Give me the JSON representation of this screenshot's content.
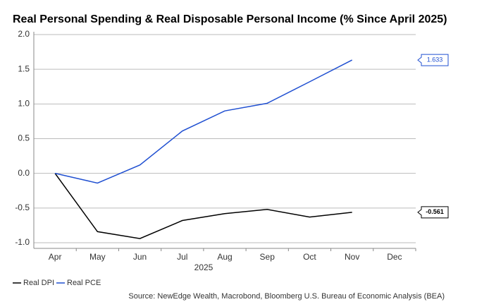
{
  "chart_data": {
    "type": "line",
    "title": "Real Personal Spending & Real Disposable Personal Income (% Since April 2025)",
    "x_label": "2025",
    "source": "Source: NewEdge Wealth, Macrobond, Bloomberg U.S. Bureau of Economic Analysis (BEA)",
    "categories": [
      "Apr",
      "May",
      "Jun",
      "Jul",
      "Aug",
      "Sep",
      "Oct",
      "Nov",
      "Dec"
    ],
    "series": [
      {
        "name": "Real DPI",
        "color": "#000000",
        "values": [
          0,
          -0.84,
          -0.94,
          -0.68,
          -0.58,
          -0.52,
          -0.63,
          -0.561,
          null
        ]
      },
      {
        "name": "Real PCE",
        "color": "#1f4fd1",
        "values": [
          0,
          -0.14,
          0.12,
          0.61,
          0.9,
          1.01,
          1.32,
          1.633,
          null
        ]
      }
    ],
    "ylim": [
      -1.0,
      2.0
    ],
    "yticks": [
      {
        "value": -1,
        "label": "-1.0"
      },
      -0.5,
      {
        "value": 0,
        "label": "0.0"
      },
      0.5,
      {
        "value": 1,
        "label": "1.0"
      },
      1.5,
      {
        "value": 2,
        "label": "2.0"
      }
    ],
    "grid": true
  }
}
